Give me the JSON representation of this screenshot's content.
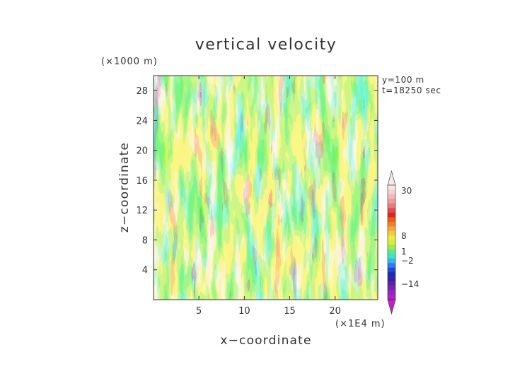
{
  "chart_data": {
    "type": "heatmap",
    "title": "vertical velocity",
    "xlabel": "x−coordinate",
    "ylabel": "z−coordinate",
    "x_unit": "(×1E4 m)",
    "y_unit": "(×1000 m)",
    "xlim": [
      0,
      24.7
    ],
    "ylim": [
      0,
      30
    ],
    "x_ticks": [
      "5",
      "10",
      "15",
      "20"
    ],
    "y_ticks": [
      "4",
      "8",
      "12",
      "16",
      "20",
      "24",
      "28"
    ],
    "info": [
      "y=100 m",
      "t=18250 sec"
    ],
    "colorbar": {
      "labels": [
        "30",
        "8",
        "1",
        "−2",
        "−14"
      ],
      "colors": [
        "#f6e6e6",
        "#f7cfcf",
        "#f3b7b7",
        "#ef9a9a",
        "#e87a7a",
        "#e54b4b",
        "#e32222",
        "#ea5a1c",
        "#f07f22",
        "#f8a43a",
        "#f8c93a",
        "#f1e83a",
        "#d4ee3a",
        "#9ced45",
        "#5ee98a",
        "#35e6c7",
        "#33b8ee",
        "#2f7cf0",
        "#2244dd",
        "#1a2bb8",
        "#3a22a6",
        "#5a22a6",
        "#7a22b6",
        "#9a22c6",
        "#b022c8"
      ]
    },
    "field_note": "",
    "colors": {
      "strong_down": "#1f2fd0",
      "down": "#2f7cf0",
      "weak": "#35e6c7",
      "near_zero": "#9ced45",
      "weak_up": "#f1e83a",
      "up": "#f8a43a",
      "strong_up": "#e54b4b"
    }
  }
}
